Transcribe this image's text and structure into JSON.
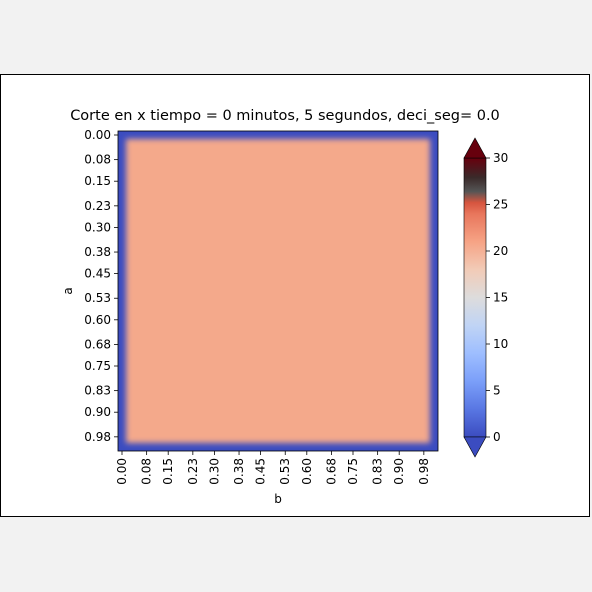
{
  "chart_data": {
    "type": "heatmap",
    "title": "Corte en x  tiempo =  0 minutos, 5 segundos, deci_seg= 0.0",
    "xlabel": "b",
    "ylabel": "a",
    "x_ticks": [
      "0.00",
      "0.08",
      "0.15",
      "0.23",
      "0.30",
      "0.38",
      "0.45",
      "0.53",
      "0.60",
      "0.68",
      "0.75",
      "0.83",
      "0.90",
      "0.98"
    ],
    "y_ticks": [
      "0.00",
      "0.08",
      "0.15",
      "0.23",
      "0.30",
      "0.38",
      "0.45",
      "0.53",
      "0.60",
      "0.68",
      "0.75",
      "0.83",
      "0.90",
      "0.98"
    ],
    "x_range": [
      0,
      1
    ],
    "y_range": [
      0,
      1
    ],
    "interior_value": 22,
    "boundary_value": 0,
    "colormap": "coolwarm",
    "colorbar": {
      "ticks": [
        "0",
        "5",
        "10",
        "15",
        "20",
        "25",
        "30"
      ],
      "range": [
        0,
        30
      ],
      "extend": "both",
      "under_color": "#3b4cc0",
      "over_color": "#67000d"
    },
    "colors": {
      "interior": "#f4a98b",
      "boundary": "#3b4cc0",
      "transition": "#dcdddd"
    }
  }
}
